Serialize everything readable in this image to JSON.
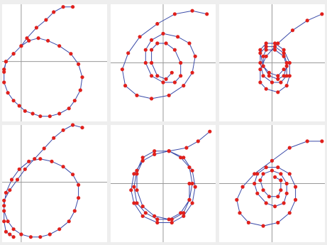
{
  "chart_data": [
    {
      "type": "scatter",
      "panel": "row1-col1",
      "mode": "trajectory",
      "title": "",
      "xlabel": "",
      "ylabel": "",
      "xlim": [
        -1,
        4.5
      ],
      "ylim": [
        -2.3,
        2.2
      ],
      "grid": false,
      "line_color": "#3a4aa8",
      "point_color": "#e0201c",
      "x": [
        2.7,
        2.2,
        1.7,
        1.3,
        0.8,
        0.3,
        0.0,
        -0.4,
        -0.8,
        -0.9,
        -0.9,
        -0.7,
        -0.4,
        -0.1,
        0.2,
        0.6,
        1.0,
        1.5,
        2.0,
        2.5,
        2.8,
        3.1,
        3.2,
        3.0,
        2.6,
        2.0,
        1.4,
        0.9,
        0.4,
        0.0,
        -0.4,
        -0.8,
        -0.9
      ],
      "y": [
        2.1,
        2.1,
        1.9,
        1.6,
        1.3,
        0.9,
        0.6,
        0.3,
        0.0,
        -0.4,
        -0.8,
        -1.2,
        -1.5,
        -1.7,
        -1.9,
        -2.0,
        -2.1,
        -2.1,
        -2.0,
        -1.8,
        -1.5,
        -1.1,
        -0.6,
        -0.1,
        0.3,
        0.6,
        0.8,
        0.9,
        0.8,
        0.6,
        0.3,
        0.0,
        -0.3
      ]
    },
    {
      "type": "scatter",
      "panel": "row1-col2",
      "mode": "trajectory",
      "title": "",
      "xlabel": "",
      "ylabel": "",
      "xlim": [
        -1.8,
        1.8
      ],
      "ylim": [
        -1.8,
        1.8
      ],
      "grid": false,
      "line_color": "#3a4aa8",
      "point_color": "#e0201c",
      "x": [
        1.5,
        1.0,
        0.4,
        -0.2,
        -0.8,
        -1.2,
        -1.4,
        -1.3,
        -0.9,
        -0.4,
        0.2,
        0.7,
        1.0,
        1.1,
        0.9,
        0.5,
        0.0,
        -0.4,
        -0.6,
        -0.6,
        -0.4,
        0.0,
        0.4,
        0.6,
        0.6,
        0.4,
        0.1,
        -0.2,
        -0.4,
        -0.4,
        -0.2,
        0.1,
        0.3
      ],
      "y": [
        1.5,
        1.6,
        1.5,
        1.2,
        0.8,
        0.3,
        -0.2,
        -0.7,
        -1.0,
        -1.1,
        -1.0,
        -0.7,
        -0.3,
        0.2,
        0.6,
        0.8,
        0.9,
        0.7,
        0.4,
        0.0,
        -0.4,
        -0.6,
        -0.6,
        -0.4,
        0.0,
        0.4,
        0.6,
        0.6,
        0.4,
        0.0,
        -0.4,
        -0.5,
        -0.3
      ]
    },
    {
      "type": "scatter",
      "panel": "row1-col3",
      "mode": "trajectory",
      "title": "",
      "xlabel": "",
      "ylabel": "",
      "xlim": [
        -1.8,
        1.8
      ],
      "ylim": [
        -1.8,
        1.8
      ],
      "grid": false,
      "line_color": "#3a4aa8",
      "point_color": "#e0201c",
      "x": [
        1.7,
        1.2,
        0.7,
        0.2,
        -0.2,
        -0.4,
        -0.4,
        -0.2,
        0.2,
        0.5,
        0.6,
        0.6,
        0.4,
        0.1,
        -0.2,
        -0.4,
        -0.4,
        -0.3,
        0.0,
        0.3,
        0.5,
        0.5,
        0.4,
        0.1,
        -0.2,
        -0.4,
        -0.3,
        -0.1,
        0.2,
        0.4,
        0.5,
        0.4,
        0.1,
        -0.2,
        -0.3,
        -0.3,
        -0.1,
        0.2,
        0.4
      ],
      "y": [
        1.5,
        1.3,
        1.0,
        0.6,
        0.2,
        -0.2,
        -0.6,
        -0.8,
        -0.9,
        -0.7,
        -0.4,
        0.0,
        0.4,
        0.6,
        0.6,
        0.4,
        0.0,
        -0.4,
        -0.6,
        -0.6,
        -0.4,
        0.0,
        0.3,
        0.5,
        0.5,
        0.3,
        -0.1,
        -0.4,
        -0.5,
        -0.4,
        -0.1,
        0.2,
        0.4,
        0.4,
        0.2,
        -0.1,
        -0.3,
        -0.4,
        -0.2
      ]
    },
    {
      "type": "scatter",
      "panel": "row2-col1",
      "mode": "trajectory",
      "title": "",
      "xlabel": "",
      "ylabel": "",
      "xlim": [
        -1,
        4.5
      ],
      "ylim": [
        -2.3,
        2.2
      ],
      "grid": false,
      "line_color": "#3a4aa8",
      "point_color": "#e0201c",
      "x": [
        3.2,
        2.7,
        2.2,
        1.7,
        1.2,
        0.7,
        0.2,
        -0.2,
        -0.6,
        -0.9,
        -0.9,
        -0.7,
        -0.4,
        0.0,
        0.5,
        1.0,
        1.5,
        2.0,
        2.5,
        2.8,
        3.0,
        3.0,
        2.7,
        2.2,
        1.6,
        1.0,
        0.4,
        -0.1,
        -0.5,
        -0.8,
        -0.9,
        -0.9,
        -0.8,
        -0.6,
        -0.4
      ],
      "y": [
        2.1,
        2.2,
        2.0,
        1.7,
        1.3,
        0.9,
        0.5,
        0.1,
        -0.3,
        -0.7,
        -1.1,
        -1.5,
        -1.8,
        -2.0,
        -2.1,
        -2.1,
        -2.0,
        -1.8,
        -1.5,
        -1.1,
        -0.6,
        -0.1,
        0.3,
        0.6,
        0.8,
        0.9,
        0.8,
        0.5,
        0.1,
        -0.4,
        -0.9,
        -1.5,
        -1.9,
        -2.0,
        -2.1
      ]
    },
    {
      "type": "scatter",
      "panel": "row2-col2",
      "mode": "trajectory",
      "title": "",
      "xlabel": "",
      "ylabel": "",
      "xlim": [
        -1.8,
        1.8
      ],
      "ylim": [
        -1.8,
        1.8
      ],
      "grid": false,
      "line_color": "#3a4aa8",
      "point_color": "#e0201c",
      "x": [
        1.6,
        1.2,
        0.8,
        0.2,
        -0.3,
        -0.7,
        -1.0,
        -1.1,
        -1.0,
        -0.7,
        -0.2,
        0.3,
        0.7,
        1.0,
        1.1,
        1.0,
        0.7,
        0.2,
        -0.3,
        -0.7,
        -0.9,
        -1.0,
        -0.9,
        -0.6,
        -0.2,
        0.3,
        0.7,
        0.9,
        1.0,
        0.9,
        0.6,
        0.2,
        -0.3,
        -0.7,
        -0.9,
        -0.9,
        -0.7,
        -0.3,
        0.2,
        0.6,
        0.9,
        0.9
      ],
      "y": [
        1.6,
        1.3,
        1.1,
        1.0,
        0.9,
        0.7,
        0.3,
        -0.2,
        -0.6,
        -1.0,
        -1.2,
        -1.2,
        -1.0,
        -0.6,
        -0.1,
        0.4,
        0.8,
        1.0,
        1.0,
        0.8,
        0.4,
        -0.1,
        -0.6,
        -0.9,
        -1.1,
        -1.1,
        -0.9,
        -0.5,
        0.0,
        0.5,
        0.8,
        1.0,
        0.9,
        0.7,
        0.3,
        -0.2,
        -0.7,
        -1.0,
        -1.1,
        -0.9,
        -0.5,
        0.0
      ]
    },
    {
      "type": "scatter",
      "panel": "row2-col3",
      "mode": "trajectory",
      "title": "",
      "xlabel": "",
      "ylabel": "",
      "xlim": [
        -1.8,
        1.8
      ],
      "ylim": [
        -1.8,
        1.8
      ],
      "grid": false,
      "line_color": "#3a4aa8",
      "point_color": "#e0201c",
      "x": [
        1.7,
        1.2,
        0.6,
        0.0,
        -0.6,
        -1.0,
        -1.2,
        -1.1,
        -0.8,
        -0.3,
        0.2,
        0.6,
        0.8,
        0.8,
        0.6,
        0.2,
        -0.2,
        -0.5,
        -0.6,
        -0.5,
        -0.2,
        0.1,
        0.4,
        0.5,
        0.5,
        0.3,
        0.0,
        -0.3,
        -0.4,
        -0.3,
        -0.1,
        0.2,
        0.3,
        0.3,
        0.1
      ],
      "y": [
        1.3,
        1.3,
        1.1,
        0.7,
        0.3,
        -0.1,
        -0.5,
        -0.9,
        -1.2,
        -1.3,
        -1.2,
        -0.9,
        -0.5,
        -0.1,
        0.3,
        0.5,
        0.5,
        0.3,
        0.0,
        -0.3,
        -0.6,
        -0.7,
        -0.6,
        -0.3,
        0.0,
        0.3,
        0.4,
        0.3,
        0.1,
        -0.2,
        -0.4,
        -0.4,
        -0.2,
        0.1,
        0.2
      ]
    }
  ]
}
